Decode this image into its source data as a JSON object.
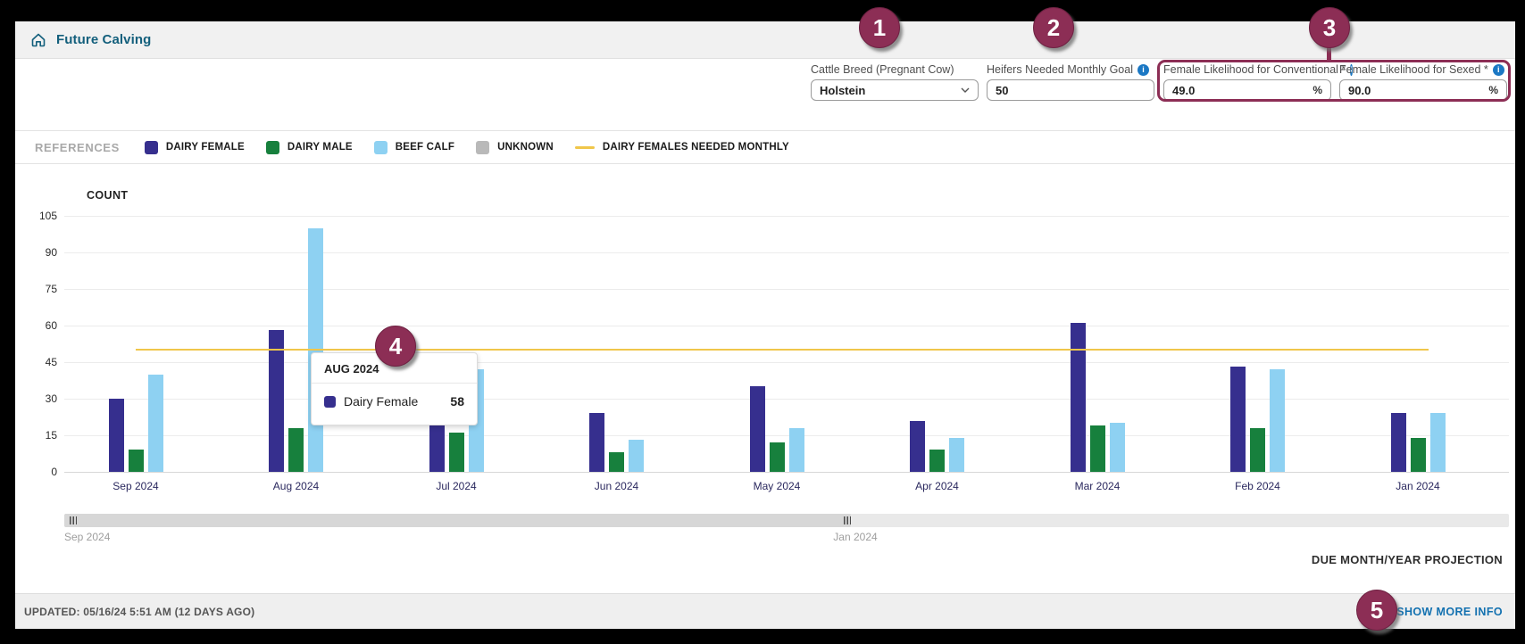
{
  "header": {
    "title": "Future Calving"
  },
  "form": {
    "fields": [
      {
        "label": "Cattle Breed (Pregnant Cow)",
        "value": "Holstein",
        "type": "select",
        "has_info": false
      },
      {
        "label": "Heifers Needed Monthly Goal",
        "value": "50",
        "type": "input",
        "has_info": true
      },
      {
        "label": "Female Likelihood for Conventional *",
        "value": "49.0",
        "suffix": "%",
        "type": "input",
        "has_info": true
      },
      {
        "label": "Female Likelihood for Sexed *",
        "value": "90.0",
        "suffix": "%",
        "type": "input",
        "has_info": true
      }
    ]
  },
  "legend": {
    "title": "REFERENCES",
    "items": [
      {
        "label": "DAIRY FEMALE",
        "color": "#362f8e",
        "type": "swatch"
      },
      {
        "label": "DAIRY MALE",
        "color": "#17803d",
        "type": "swatch"
      },
      {
        "label": "BEEF CALF",
        "color": "#8ed1f2",
        "type": "swatch"
      },
      {
        "label": "UNKNOWN",
        "color": "#b9b9b9",
        "type": "swatch"
      },
      {
        "label": "DAIRY FEMALES NEEDED MONTHLY",
        "color": "#f0c64a",
        "type": "line"
      }
    ]
  },
  "chart_data": {
    "type": "bar",
    "title": "COUNT",
    "ylabel": "COUNT",
    "ylim": [
      0,
      105
    ],
    "ytick_step": 15,
    "grid": true,
    "legend_position": "top",
    "categories": [
      "Sep 2024",
      "Aug 2024",
      "Jul 2024",
      "Jun 2024",
      "May 2024",
      "Apr 2024",
      "Mar 2024",
      "Feb 2024",
      "Jan 2024"
    ],
    "series": [
      {
        "name": "Dairy Female",
        "color": "#362f8e",
        "values": [
          30,
          58,
          21,
          24,
          35,
          21,
          61,
          43,
          24
        ]
      },
      {
        "name": "Dairy Male",
        "color": "#17803d",
        "values": [
          9,
          18,
          16,
          8,
          12,
          9,
          19,
          18,
          14
        ]
      },
      {
        "name": "Beef Calf",
        "color": "#8ed1f2",
        "values": [
          40,
          100,
          42,
          13,
          18,
          14,
          20,
          42,
          24
        ]
      }
    ],
    "reference_line": {
      "label": "Dairy Females Needed Monthly",
      "value": 50,
      "color": "#f0c64a"
    }
  },
  "tooltip": {
    "title": "AUG 2024",
    "series": "Dairy Female",
    "value": "58",
    "color": "#362f8e"
  },
  "scrollbar": {
    "start_label": "Sep 2024",
    "end_label": "Jan 2024"
  },
  "chart_caption": "DUE MONTH/YEAR PROJECTION",
  "footer": {
    "updated": "UPDATED: 05/16/24 5:51 AM (12 DAYS AGO)",
    "show_more": "SHOW MORE INFO"
  },
  "callouts": [
    "1",
    "2",
    "3",
    "4",
    "5"
  ],
  "colors": {
    "accent_maroon": "#8c2e55",
    "title_teal": "#135f7c",
    "link_blue": "#1371b0",
    "info_blue": "#1b78c4",
    "goal_line": "#f0c64a"
  }
}
